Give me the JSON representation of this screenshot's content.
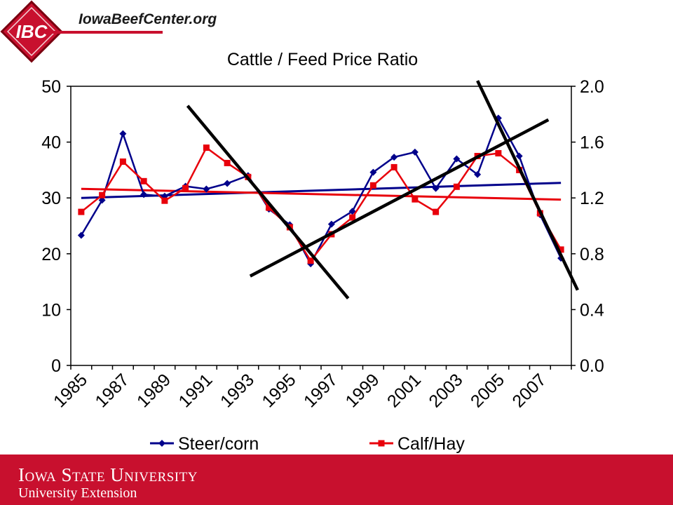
{
  "header": {
    "logo_text": "IBC",
    "site": "IowaBeefCenter.org"
  },
  "footer": {
    "university": "Iowa State University",
    "extension": "University Extension"
  },
  "colors": {
    "steer": "#00008b",
    "calf": "#e8000b",
    "trend": "#000000",
    "brand_red": "#c8102e"
  },
  "chart_data": {
    "type": "line",
    "title": "Cattle / Feed Price Ratio",
    "x": [
      1985,
      1986,
      1987,
      1988,
      1989,
      1990,
      1991,
      1992,
      1993,
      1994,
      1995,
      1996,
      1997,
      1998,
      1999,
      2000,
      2001,
      2002,
      2003,
      2004,
      2005,
      2006,
      2007,
      2008
    ],
    "x_tick_labels": [
      "1985",
      "1987",
      "1989",
      "1991",
      "1993",
      "1995",
      "1997",
      "1999",
      "2001",
      "2003",
      "2005",
      "2007"
    ],
    "y_left": {
      "range": [
        0,
        50
      ],
      "ticks": [
        "0",
        "10",
        "20",
        "30",
        "40",
        "50"
      ]
    },
    "y_right": {
      "range": [
        0,
        2.0
      ],
      "ticks": [
        "0.0",
        "0.4",
        "0.8",
        "1.2",
        "1.6",
        "2.0"
      ]
    },
    "series": [
      {
        "name": "Steer/corn",
        "axis": "left",
        "marker": "diamond",
        "values": [
          23.3,
          29.6,
          41.5,
          30.6,
          30.3,
          32.1,
          31.6,
          32.6,
          34.0,
          28.0,
          25.2,
          18.2,
          25.3,
          27.6,
          34.6,
          37.3,
          38.2,
          31.7,
          37.0,
          34.2,
          44.3,
          37.5,
          27.0,
          19.2
        ],
        "trend": [
          30.0,
          32.7
        ]
      },
      {
        "name": "Calf/Hay",
        "axis": "right",
        "marker": "square",
        "values": [
          1.1,
          1.22,
          1.46,
          1.32,
          1.18,
          1.27,
          1.56,
          1.45,
          1.35,
          1.13,
          0.99,
          0.75,
          0.94,
          1.06,
          1.29,
          1.42,
          1.19,
          1.1,
          1.28,
          1.5,
          1.52,
          1.4,
          1.09,
          0.83
        ],
        "trend": [
          1.265,
          1.188
        ]
      }
    ],
    "hand_drawn_trend_lines": [
      {
        "x": [
          1990.1,
          1997.8
        ],
        "y_left": [
          46.5,
          12.0
        ]
      },
      {
        "x": [
          1993.1,
          2007.4
        ],
        "y_left": [
          16.0,
          44.0
        ]
      },
      {
        "x": [
          2004.0,
          2008.8
        ],
        "y_left": [
          51.0,
          13.5
        ]
      }
    ],
    "legend": {
      "position": "bottom"
    },
    "grid": false
  }
}
